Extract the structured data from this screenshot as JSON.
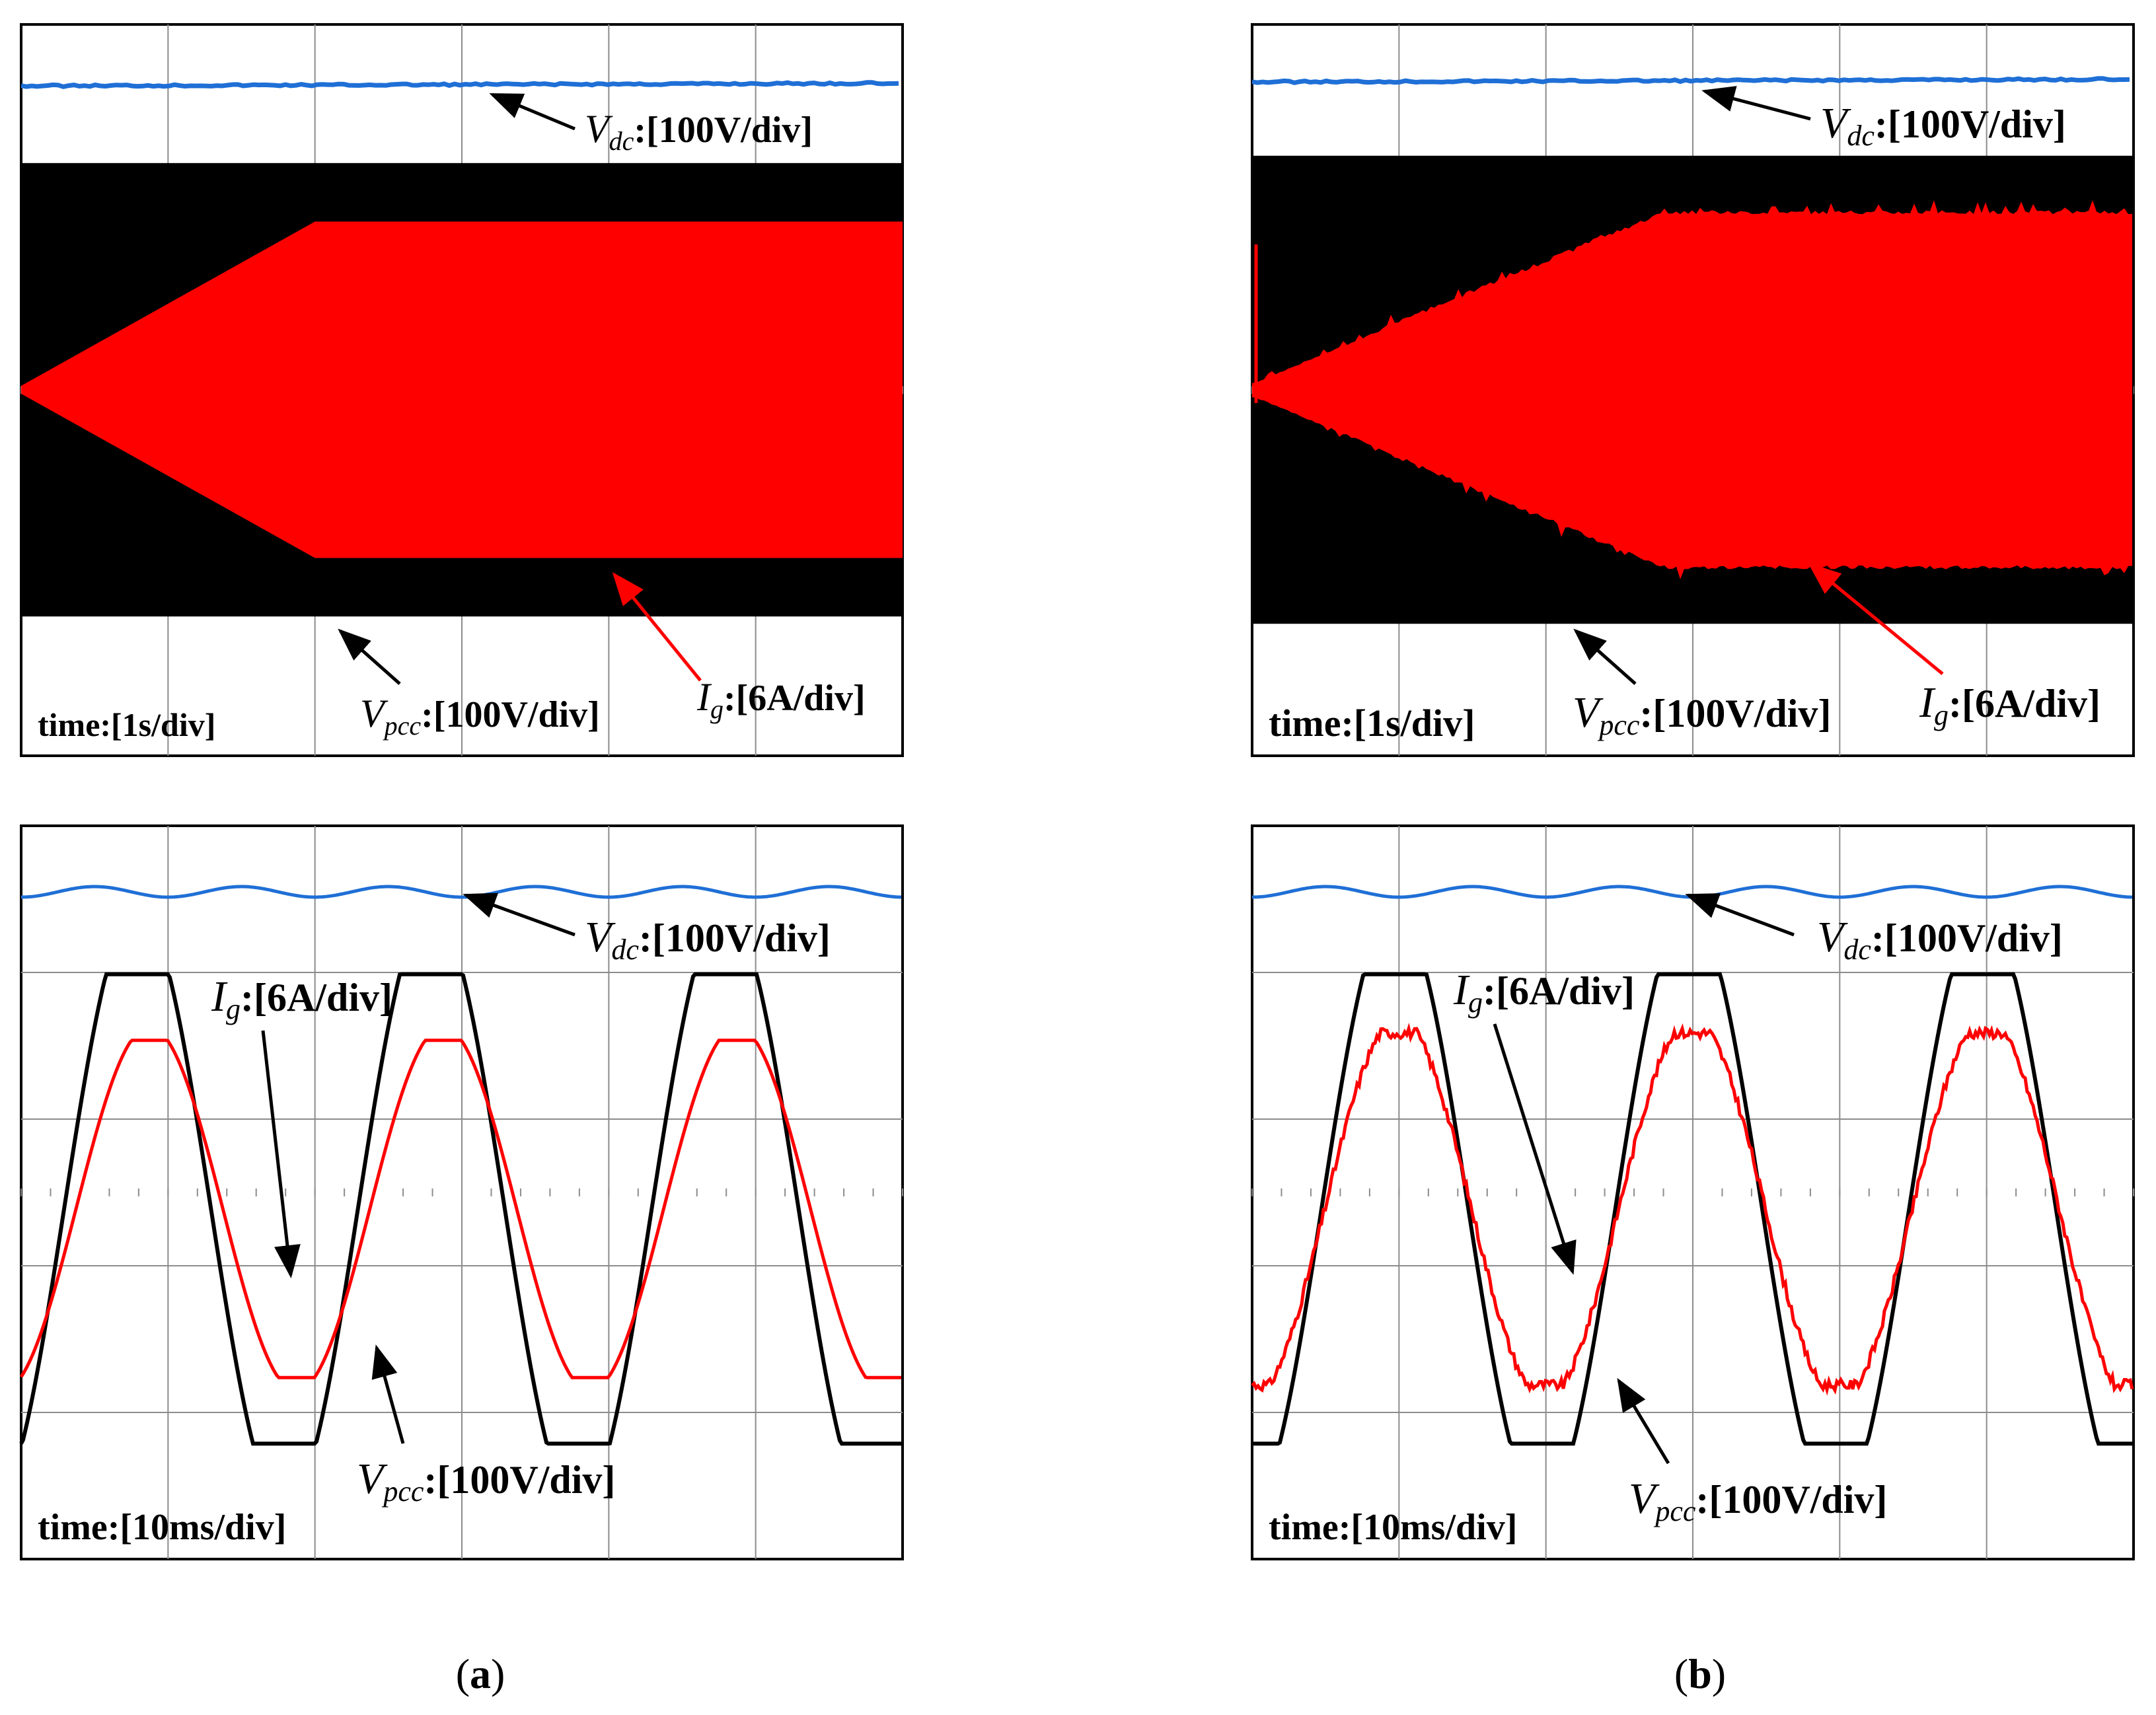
{
  "colors": {
    "vdc": "#1f6fd6",
    "vpcc": "#000000",
    "ig": "#ff0000",
    "grid": "#8c8c8c",
    "frame": "#000000"
  },
  "chart_data": [
    {
      "id": "a-top",
      "type": "line",
      "panel": "a",
      "grid": true,
      "divisions": {
        "x": 6,
        "y": 5
      },
      "time_label": "time:[1s/div]",
      "series": [
        {
          "name": "Vdc",
          "scale": "100V/div",
          "color": "#1f6fd6",
          "level_div": 1.0
        },
        {
          "name": "Vpcc",
          "scale": "100V/div",
          "color": "#000000",
          "envelope_amplitude_div": 1.55
        },
        {
          "name": "Ig",
          "scale": "6A/div",
          "color": "#ff0000",
          "envelope_ramp": {
            "start_s": 0,
            "end_s": 2,
            "amplitude_div": [
              0,
              1.15
            ]
          }
        }
      ]
    },
    {
      "id": "b-top",
      "type": "line",
      "panel": "b",
      "grid": true,
      "divisions": {
        "x": 6,
        "y": 5
      },
      "time_label": "time:[1s/div]",
      "series": [
        {
          "name": "Vdc",
          "scale": "100V/div",
          "color": "#1f6fd6",
          "level_div": 1.0
        },
        {
          "name": "Vpcc",
          "scale": "100V/div",
          "color": "#000000",
          "envelope_amplitude_div": 1.6
        },
        {
          "name": "Ig",
          "scale": "6A/div",
          "color": "#ff0000",
          "envelope_ramp": {
            "start_s": 0,
            "end_s": 2.8,
            "amplitude_div": [
              0,
              1.2
            ]
          }
        }
      ]
    },
    {
      "id": "a-bottom",
      "type": "line",
      "panel": "a",
      "grid": true,
      "divisions": {
        "x": 6,
        "y": 5
      },
      "time_label": "time:[10ms/div]",
      "series": [
        {
          "name": "Vdc",
          "scale": "100V/div",
          "color": "#1f6fd6",
          "level_div": 0.95
        },
        {
          "name": "Vpcc",
          "scale": "100V/div",
          "color": "#000000",
          "amplitude_div": 1.6,
          "period_ms": 20
        },
        {
          "name": "Ig",
          "scale": "6A/div",
          "color": "#ff0000",
          "amplitude_div": 1.15,
          "period_ms": 20
        }
      ]
    },
    {
      "id": "b-bottom",
      "type": "line",
      "panel": "b",
      "grid": true,
      "divisions": {
        "x": 6,
        "y": 5
      },
      "time_label": "time:[10ms/div]",
      "series": [
        {
          "name": "Vdc",
          "scale": "100V/div",
          "color": "#1f6fd6",
          "level_div": 0.95
        },
        {
          "name": "Vpcc",
          "scale": "100V/div",
          "color": "#000000",
          "amplitude_div": 1.6,
          "period_ms": 20
        },
        {
          "name": "Ig",
          "scale": "6A/div",
          "color": "#ff0000",
          "amplitude_div": 1.2,
          "period_ms": 20
        }
      ]
    }
  ],
  "labels": {
    "V": "V",
    "I": "I",
    "dc_sub": "dc",
    "pcc_sub": "pcc",
    "g_sub": "g",
    "v100": ":[100V/div]",
    "a6": ":[6A/div]"
  },
  "captions": {
    "a_open": "(",
    "a": "a",
    "a_close": ")",
    "b_open": "(",
    "b": "b",
    "b_close": ")"
  }
}
